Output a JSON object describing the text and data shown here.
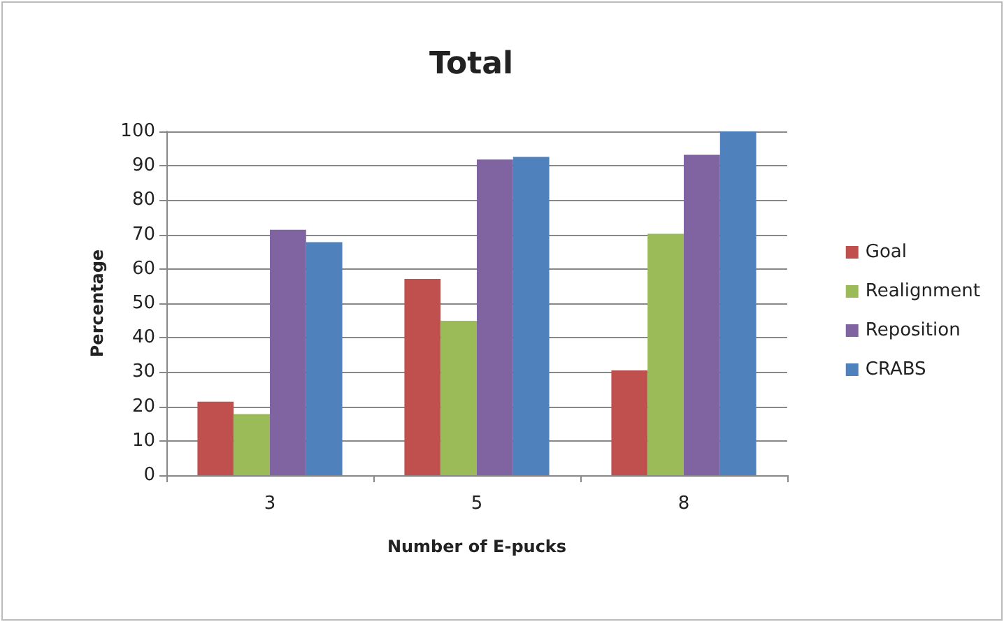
{
  "chart_data": {
    "type": "bar",
    "title": "Total",
    "xlabel": "Number of E-pucks",
    "ylabel": "Percentage",
    "categories": [
      "3",
      "5",
      "8"
    ],
    "series": [
      {
        "name": "Goal",
        "color": "#c0504d",
        "values": [
          21.4,
          57.1,
          30.5
        ]
      },
      {
        "name": "Realignment",
        "color": "#9bbb59",
        "values": [
          17.8,
          44.9,
          70.2
        ]
      },
      {
        "name": "Reposition",
        "color": "#8064a2",
        "values": [
          71.4,
          91.8,
          93.2
        ]
      },
      {
        "name": "CRABS",
        "color": "#4f81bd",
        "values": [
          67.8,
          92.6,
          100
        ]
      }
    ],
    "ylim": [
      0,
      100
    ],
    "yticks": [
      0,
      10,
      20,
      30,
      40,
      50,
      60,
      70,
      80,
      90,
      100
    ],
    "grid": "y",
    "legend": "right"
  }
}
